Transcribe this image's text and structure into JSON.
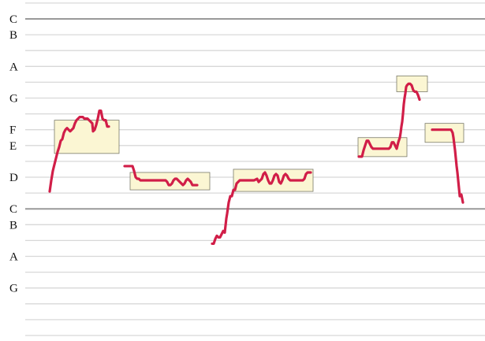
{
  "chart_data": {
    "type": "line",
    "title": "",
    "xlabel": "",
    "ylabel": "",
    "y_scale": "semitone lines, C and C' emphasized",
    "y_labels": [
      {
        "label": "C",
        "y": 0
      },
      {
        "label": "B",
        "y": -1
      },
      {
        "label": "A",
        "y": -3
      },
      {
        "label": "G",
        "y": -5
      },
      {
        "label": "F",
        "y": -7
      },
      {
        "label": "E",
        "y": -8
      },
      {
        "label": "D",
        "y": -10
      },
      {
        "label": "C",
        "y": -12
      },
      {
        "label": "B",
        "y": -13
      },
      {
        "label": "A",
        "y": -15
      },
      {
        "label": "G",
        "y": -17
      }
    ],
    "ylim": [
      -20,
      1
    ],
    "xlim": [
      0,
      615
    ],
    "colors": {
      "grid": "#d8d8d8",
      "octave_line": "#999999",
      "pitch_curve": "#d11e48",
      "box_fill": "#fbf6d3",
      "box_stroke": "#7a7a6a"
    },
    "segments": [
      {
        "points": [
          [
            63,
            -10.9
          ],
          [
            65,
            -10.2
          ],
          [
            67,
            -9.6
          ],
          [
            69,
            -9.2
          ],
          [
            71,
            -8.8
          ],
          [
            73,
            -8.4
          ],
          [
            75,
            -8.1
          ],
          [
            77,
            -7.7
          ],
          [
            79,
            -7.6
          ],
          [
            81,
            -7.2
          ],
          [
            83,
            -7.0
          ],
          [
            85,
            -6.9
          ],
          [
            87,
            -7.0
          ],
          [
            89,
            -7.1
          ],
          [
            91,
            -7.0
          ],
          [
            93,
            -6.9
          ],
          [
            95,
            -6.6
          ],
          [
            97,
            -6.4
          ],
          [
            99,
            -6.3
          ],
          [
            101,
            -6.2
          ],
          [
            103,
            -6.2
          ],
          [
            105,
            -6.2
          ],
          [
            107,
            -6.3
          ],
          [
            109,
            -6.3
          ],
          [
            111,
            -6.3
          ],
          [
            113,
            -6.4
          ],
          [
            115,
            -6.5
          ],
          [
            117,
            -6.6
          ],
          [
            118,
            -7.1
          ],
          [
            120,
            -7.0
          ],
          [
            122,
            -6.7
          ],
          [
            124,
            -6.3
          ],
          [
            126,
            -5.8
          ],
          [
            128,
            -5.8
          ],
          [
            130,
            -6.3
          ],
          [
            132,
            -6.4
          ],
          [
            134,
            -6.4
          ],
          [
            136,
            -6.8
          ],
          [
            138,
            -6.8
          ]
        ]
      },
      {
        "points": [
          [
            158,
            -9.3
          ],
          [
            162,
            -9.3
          ],
          [
            166,
            -9.3
          ],
          [
            168,
            -9.3
          ],
          [
            170,
            -9.6
          ],
          [
            172,
            -10.0
          ],
          [
            174,
            -10.1
          ],
          [
            176,
            -10.1
          ],
          [
            178,
            -10.2
          ],
          [
            182,
            -10.2
          ],
          [
            186,
            -10.2
          ],
          [
            190,
            -10.2
          ],
          [
            194,
            -10.2
          ],
          [
            198,
            -10.2
          ],
          [
            202,
            -10.2
          ],
          [
            206,
            -10.2
          ],
          [
            210,
            -10.2
          ],
          [
            212,
            -10.3
          ],
          [
            214,
            -10.5
          ],
          [
            216,
            -10.5
          ],
          [
            218,
            -10.4
          ],
          [
            220,
            -10.2
          ],
          [
            222,
            -10.1
          ],
          [
            224,
            -10.1
          ],
          [
            226,
            -10.2
          ],
          [
            228,
            -10.3
          ],
          [
            230,
            -10.4
          ],
          [
            232,
            -10.5
          ],
          [
            234,
            -10.4
          ],
          [
            236,
            -10.2
          ],
          [
            238,
            -10.1
          ],
          [
            240,
            -10.2
          ],
          [
            242,
            -10.3
          ],
          [
            244,
            -10.5
          ],
          [
            246,
            -10.5
          ],
          [
            250,
            -10.5
          ]
        ]
      },
      {
        "points": [
          [
            269,
            -14.2
          ],
          [
            271,
            -14.2
          ],
          [
            273,
            -13.9
          ],
          [
            275,
            -13.7
          ],
          [
            277,
            -13.8
          ],
          [
            279,
            -13.8
          ],
          [
            281,
            -13.6
          ],
          [
            283,
            -13.4
          ],
          [
            285,
            -13.5
          ],
          [
            287,
            -12.6
          ],
          [
            288,
            -12.3
          ],
          [
            290,
            -11.6
          ],
          [
            292,
            -11.2
          ],
          [
            294,
            -11.2
          ],
          [
            296,
            -10.8
          ],
          [
            298,
            -10.8
          ],
          [
            300,
            -10.4
          ],
          [
            302,
            -10.3
          ],
          [
            304,
            -10.2
          ],
          [
            306,
            -10.2
          ],
          [
            310,
            -10.2
          ],
          [
            314,
            -10.2
          ],
          [
            318,
            -10.2
          ],
          [
            322,
            -10.2
          ],
          [
            326,
            -10.1
          ],
          [
            328,
            -10.3
          ],
          [
            330,
            -10.2
          ],
          [
            332,
            -10.1
          ],
          [
            334,
            -9.8
          ],
          [
            336,
            -9.7
          ],
          [
            338,
            -9.9
          ],
          [
            340,
            -10.2
          ],
          [
            342,
            -10.4
          ],
          [
            344,
            -10.4
          ],
          [
            346,
            -10.2
          ],
          [
            348,
            -9.9
          ],
          [
            350,
            -9.8
          ],
          [
            352,
            -9.9
          ],
          [
            354,
            -10.3
          ],
          [
            356,
            -10.4
          ],
          [
            358,
            -10.2
          ],
          [
            360,
            -9.9
          ],
          [
            362,
            -9.8
          ],
          [
            364,
            -9.9
          ],
          [
            366,
            -10.1
          ],
          [
            368,
            -10.2
          ],
          [
            372,
            -10.2
          ],
          [
            376,
            -10.2
          ],
          [
            380,
            -10.2
          ],
          [
            384,
            -10.2
          ],
          [
            386,
            -10.1
          ],
          [
            388,
            -9.8
          ],
          [
            390,
            -9.7
          ],
          [
            394,
            -9.7
          ]
        ]
      },
      {
        "points": [
          [
            455,
            -8.7
          ],
          [
            459,
            -8.7
          ],
          [
            461,
            -8.3
          ],
          [
            463,
            -8.0
          ],
          [
            465,
            -7.7
          ],
          [
            467,
            -7.7
          ],
          [
            469,
            -7.9
          ],
          [
            471,
            -8.1
          ],
          [
            473,
            -8.2
          ],
          [
            477,
            -8.2
          ],
          [
            481,
            -8.2
          ],
          [
            485,
            -8.2
          ],
          [
            489,
            -8.2
          ],
          [
            493,
            -8.2
          ],
          [
            495,
            -8.1
          ],
          [
            497,
            -7.8
          ],
          [
            499,
            -7.8
          ],
          [
            501,
            -8.0
          ],
          [
            503,
            -8.2
          ],
          [
            505,
            -7.8
          ],
          [
            507,
            -7.5
          ],
          [
            508,
            -7.2
          ],
          [
            509,
            -6.8
          ],
          [
            510,
            -6.5
          ],
          [
            511,
            -6.0
          ],
          [
            512,
            -5.4
          ],
          [
            513,
            -5.0
          ],
          [
            514,
            -4.7
          ],
          [
            515,
            -4.3
          ],
          [
            516,
            -4.2
          ],
          [
            518,
            -4.1
          ],
          [
            520,
            -4.1
          ],
          [
            522,
            -4.2
          ],
          [
            524,
            -4.5
          ],
          [
            526,
            -4.6
          ],
          [
            528,
            -4.6
          ],
          [
            530,
            -4.8
          ],
          [
            532,
            -5.1
          ]
        ]
      },
      {
        "points": [
          [
            548,
            -7.0
          ],
          [
            552,
            -7.0
          ],
          [
            556,
            -7.0
          ],
          [
            560,
            -7.0
          ],
          [
            564,
            -7.0
          ],
          [
            568,
            -7.0
          ],
          [
            572,
            -7.0
          ],
          [
            574,
            -7.2
          ],
          [
            575,
            -7.5
          ],
          [
            576,
            -7.9
          ],
          [
            577,
            -8.3
          ],
          [
            578,
            -8.8
          ],
          [
            579,
            -9.3
          ],
          [
            580,
            -9.7
          ],
          [
            581,
            -10.2
          ],
          [
            582,
            -10.7
          ],
          [
            583,
            -11.2
          ],
          [
            585,
            -11.1
          ],
          [
            587,
            -11.6
          ]
        ]
      }
    ],
    "highlight_boxes": [
      {
        "x_range": [
          69,
          151
        ],
        "y_range": [
          -8.5,
          -6.4
        ]
      },
      {
        "x_range": [
          165,
          266
        ],
        "y_range": [
          -10.8,
          -9.7
        ]
      },
      {
        "x_range": [
          296,
          397
        ],
        "y_range": [
          -10.9,
          -9.5
        ]
      },
      {
        "x_range": [
          454,
          516
        ],
        "y_range": [
          -8.7,
          -7.5
        ]
      },
      {
        "x_range": [
          503,
          542
        ],
        "y_range": [
          -4.6,
          -3.6
        ]
      },
      {
        "x_range": [
          539,
          588
        ],
        "y_range": [
          -7.8,
          -6.6
        ]
      }
    ]
  }
}
